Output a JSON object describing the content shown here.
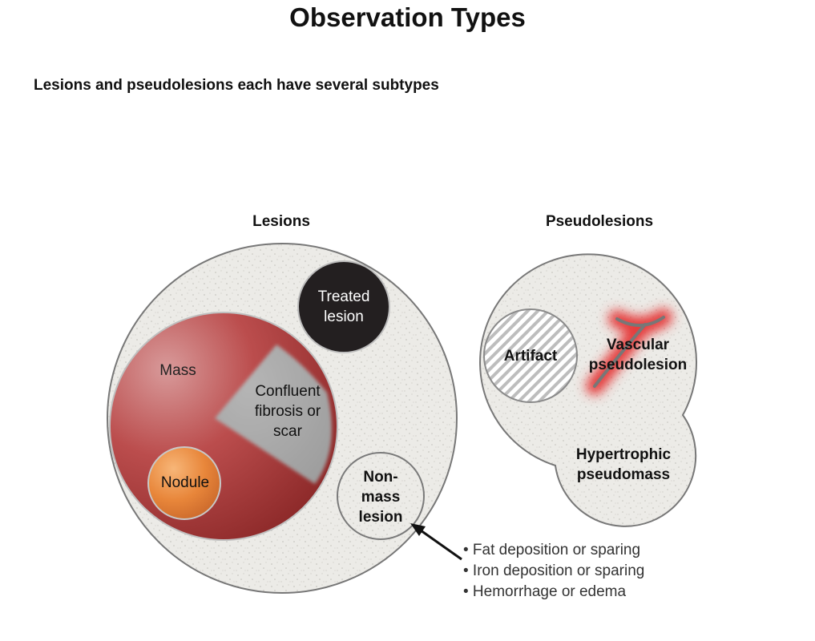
{
  "title": "Observation Types",
  "subtitle": "Lesions and pseudolesions each have several subtypes",
  "groups": {
    "lesions": {
      "label": "Lesions",
      "mass": "Mass",
      "nodule": "Nodule",
      "treated": [
        "Treated",
        "lesion"
      ],
      "confluent": [
        "Confluent",
        "fibrosis or",
        "scar"
      ],
      "nonmass": [
        "Non-",
        "mass",
        "lesion"
      ]
    },
    "pseudolesions": {
      "label": "Pseudolesions",
      "artifact": "Artifact",
      "vascular": [
        "Vascular",
        "pseudolesion"
      ],
      "hypertrophic": [
        "Hypertrophic",
        "pseudomass"
      ]
    }
  },
  "nonmass_examples": [
    "• Fat deposition or sparing",
    "• Iron deposition or sparing",
    "• Hemorrhage or edema"
  ],
  "colors": {
    "mass": "#b84a4a",
    "nodule": "#e8883a",
    "treated": "#231f20",
    "scar": "#a9a9a9",
    "container": "#ecebe7",
    "vascular_glow": "#e53b3b"
  }
}
